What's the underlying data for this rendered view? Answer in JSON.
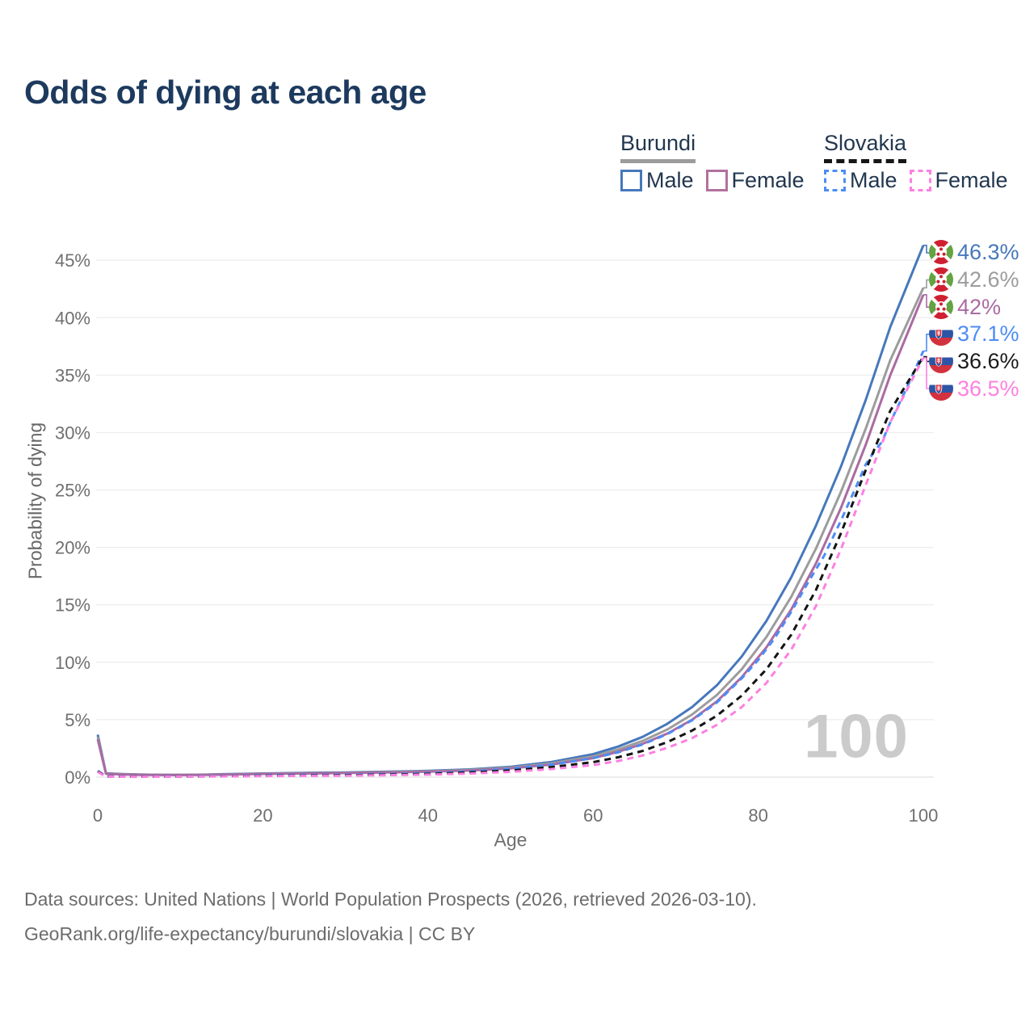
{
  "title": "Odds of dying at each age",
  "legend": {
    "groups": [
      {
        "country": "Burundi",
        "style": "solid",
        "items": [
          {
            "label": "Male",
            "color": "#4678bb"
          },
          {
            "label": "Female",
            "color": "#b0719f"
          }
        ]
      },
      {
        "country": "Slovakia",
        "style": "dashed",
        "items": [
          {
            "label": "Male",
            "color": "#4d8cf5"
          },
          {
            "label": "Female",
            "color": "#fd80e1"
          }
        ]
      }
    ]
  },
  "chart_data": {
    "type": "line",
    "title": "Odds of dying at each age",
    "xlabel": "Age",
    "ylabel": "Probability of dying",
    "xlim": [
      0,
      100
    ],
    "ylim": [
      0,
      46.5
    ],
    "grid": "horizontal",
    "watermark": "100",
    "xticks": [
      {
        "v": 0,
        "label": "0"
      },
      {
        "v": 20,
        "label": "20"
      },
      {
        "v": 40,
        "label": "40"
      },
      {
        "v": 60,
        "label": "60"
      },
      {
        "v": 80,
        "label": "80"
      },
      {
        "v": 100,
        "label": "100"
      }
    ],
    "yticks": [
      {
        "v": 0,
        "label": "0%"
      },
      {
        "v": 5,
        "label": "5%"
      },
      {
        "v": 10,
        "label": "10%"
      },
      {
        "v": 15,
        "label": "15%"
      },
      {
        "v": 20,
        "label": "20%"
      },
      {
        "v": 25,
        "label": "25%"
      },
      {
        "v": 30,
        "label": "30%"
      },
      {
        "v": 35,
        "label": "35%"
      },
      {
        "v": 40,
        "label": "40%"
      },
      {
        "v": 45,
        "label": "45%"
      }
    ],
    "series": [
      {
        "id": "burundi-male",
        "name": "Burundi Male",
        "color": "#4678bb",
        "dash": false,
        "points": [
          [
            0,
            3.7
          ],
          [
            1,
            0.33
          ],
          [
            3,
            0.27
          ],
          [
            5,
            0.23
          ],
          [
            8,
            0.2
          ],
          [
            10,
            0.2
          ],
          [
            13,
            0.22
          ],
          [
            15,
            0.25
          ],
          [
            18,
            0.29
          ],
          [
            20,
            0.32
          ],
          [
            25,
            0.37
          ],
          [
            30,
            0.41
          ],
          [
            35,
            0.47
          ],
          [
            40,
            0.54
          ],
          [
            45,
            0.67
          ],
          [
            50,
            0.9
          ],
          [
            55,
            1.32
          ],
          [
            60,
            2.0
          ],
          [
            63,
            2.65
          ],
          [
            66,
            3.5
          ],
          [
            69,
            4.65
          ],
          [
            72,
            6.1
          ],
          [
            75,
            8.0
          ],
          [
            78,
            10.5
          ],
          [
            81,
            13.6
          ],
          [
            84,
            17.4
          ],
          [
            87,
            21.9
          ],
          [
            90,
            27.0
          ],
          [
            93,
            32.8
          ],
          [
            96,
            39.2
          ],
          [
            100,
            46.3
          ]
        ]
      },
      {
        "id": "burundi-both",
        "name": "Burundi Both sexes",
        "color": "#9c9c9c",
        "dash": false,
        "points": [
          [
            0,
            3.5
          ],
          [
            1,
            0.31
          ],
          [
            3,
            0.25
          ],
          [
            5,
            0.21
          ],
          [
            8,
            0.19
          ],
          [
            10,
            0.19
          ],
          [
            13,
            0.21
          ],
          [
            15,
            0.23
          ],
          [
            18,
            0.27
          ],
          [
            20,
            0.3
          ],
          [
            25,
            0.34
          ],
          [
            30,
            0.38
          ],
          [
            35,
            0.44
          ],
          [
            40,
            0.5
          ],
          [
            45,
            0.61
          ],
          [
            50,
            0.82
          ],
          [
            55,
            1.2
          ],
          [
            60,
            1.8
          ],
          [
            63,
            2.4
          ],
          [
            66,
            3.15
          ],
          [
            69,
            4.15
          ],
          [
            72,
            5.45
          ],
          [
            75,
            7.15
          ],
          [
            78,
            9.4
          ],
          [
            81,
            12.2
          ],
          [
            84,
            15.7
          ],
          [
            87,
            19.9
          ],
          [
            90,
            24.8
          ],
          [
            93,
            30.3
          ],
          [
            96,
            36.3
          ],
          [
            100,
            42.6
          ]
        ]
      },
      {
        "id": "burundi-female",
        "name": "Burundi Female",
        "color": "#aa6ba3",
        "dash": false,
        "points": [
          [
            0,
            3.3
          ],
          [
            1,
            0.29
          ],
          [
            3,
            0.23
          ],
          [
            5,
            0.2
          ],
          [
            8,
            0.18
          ],
          [
            10,
            0.18
          ],
          [
            13,
            0.19
          ],
          [
            15,
            0.21
          ],
          [
            18,
            0.25
          ],
          [
            20,
            0.28
          ],
          [
            25,
            0.32
          ],
          [
            30,
            0.36
          ],
          [
            35,
            0.41
          ],
          [
            40,
            0.47
          ],
          [
            45,
            0.57
          ],
          [
            50,
            0.76
          ],
          [
            55,
            1.1
          ],
          [
            60,
            1.65
          ],
          [
            63,
            2.2
          ],
          [
            66,
            2.9
          ],
          [
            69,
            3.8
          ],
          [
            72,
            5.0
          ],
          [
            75,
            6.6
          ],
          [
            78,
            8.7
          ],
          [
            81,
            11.3
          ],
          [
            84,
            14.6
          ],
          [
            87,
            18.6
          ],
          [
            90,
            23.4
          ],
          [
            93,
            28.9
          ],
          [
            96,
            35.0
          ],
          [
            100,
            42.0
          ]
        ]
      },
      {
        "id": "slovakia-male",
        "name": "Slovakia Male",
        "color": "#4d8cf5",
        "dash": true,
        "points": [
          [
            0,
            0.55
          ],
          [
            1,
            0.06
          ],
          [
            5,
            0.05
          ],
          [
            10,
            0.06
          ],
          [
            15,
            0.1
          ],
          [
            18,
            0.14
          ],
          [
            20,
            0.16
          ],
          [
            25,
            0.18
          ],
          [
            30,
            0.21
          ],
          [
            35,
            0.26
          ],
          [
            40,
            0.34
          ],
          [
            45,
            0.48
          ],
          [
            50,
            0.73
          ],
          [
            55,
            1.1
          ],
          [
            60,
            1.65
          ],
          [
            63,
            2.15
          ],
          [
            66,
            2.85
          ],
          [
            69,
            3.75
          ],
          [
            72,
            4.95
          ],
          [
            75,
            6.5
          ],
          [
            78,
            8.6
          ],
          [
            80,
            10.2
          ],
          [
            82,
            12.1
          ],
          [
            84,
            14.4
          ],
          [
            86,
            16.9
          ],
          [
            88,
            19.3
          ],
          [
            90,
            22.3
          ],
          [
            92,
            25.5
          ],
          [
            93,
            27.2
          ],
          [
            94,
            28.3
          ],
          [
            95,
            29.2
          ],
          [
            96,
            30.9
          ],
          [
            98,
            33.9
          ],
          [
            100,
            37.1
          ]
        ]
      },
      {
        "id": "slovakia-both",
        "name": "Slovakia Both sexes",
        "color": "#141414",
        "dash": true,
        "points": [
          [
            0,
            0.5
          ],
          [
            1,
            0.05
          ],
          [
            5,
            0.04
          ],
          [
            10,
            0.05
          ],
          [
            15,
            0.08
          ],
          [
            20,
            0.12
          ],
          [
            25,
            0.14
          ],
          [
            30,
            0.17
          ],
          [
            35,
            0.21
          ],
          [
            40,
            0.28
          ],
          [
            45,
            0.4
          ],
          [
            50,
            0.58
          ],
          [
            55,
            0.88
          ],
          [
            60,
            1.3
          ],
          [
            63,
            1.72
          ],
          [
            66,
            2.28
          ],
          [
            69,
            3.05
          ],
          [
            72,
            4.05
          ],
          [
            75,
            5.35
          ],
          [
            78,
            7.1
          ],
          [
            81,
            9.4
          ],
          [
            84,
            12.4
          ],
          [
            87,
            16.3
          ],
          [
            90,
            21.2
          ],
          [
            93,
            26.7
          ],
          [
            96,
            31.9
          ],
          [
            100,
            36.6
          ]
        ]
      },
      {
        "id": "slovakia-female",
        "name": "Slovakia Female",
        "color": "#fd80e1",
        "dash": true,
        "points": [
          [
            0,
            0.45
          ],
          [
            1,
            0.04
          ],
          [
            5,
            0.03
          ],
          [
            10,
            0.04
          ],
          [
            15,
            0.06
          ],
          [
            20,
            0.09
          ],
          [
            25,
            0.11
          ],
          [
            30,
            0.13
          ],
          [
            35,
            0.17
          ],
          [
            40,
            0.22
          ],
          [
            45,
            0.31
          ],
          [
            50,
            0.46
          ],
          [
            55,
            0.7
          ],
          [
            60,
            1.05
          ],
          [
            63,
            1.4
          ],
          [
            66,
            1.88
          ],
          [
            69,
            2.55
          ],
          [
            72,
            3.4
          ],
          [
            75,
            4.55
          ],
          [
            78,
            6.1
          ],
          [
            81,
            8.2
          ],
          [
            84,
            11.1
          ],
          [
            87,
            14.9
          ],
          [
            90,
            19.8
          ],
          [
            93,
            25.4
          ],
          [
            96,
            30.9
          ],
          [
            100,
            36.5
          ]
        ]
      }
    ],
    "end_labels": [
      {
        "text": "46.3%",
        "value": 46.3,
        "flag": "burundi",
        "color": "#4678bb"
      },
      {
        "text": "42.6%",
        "value": 42.6,
        "flag": "burundi",
        "color": "#9c9c9c"
      },
      {
        "text": "42%",
        "value": 42.0,
        "flag": "burundi",
        "color": "#aa6ba3"
      },
      {
        "text": "37.1%",
        "value": 37.1,
        "flag": "slovakia",
        "color": "#4d8cf5"
      },
      {
        "text": "36.6%",
        "value": 36.6,
        "flag": "slovakia",
        "color": "#1a1a1a"
      },
      {
        "text": "36.5%",
        "value": 36.5,
        "flag": "slovakia",
        "color": "#fd80e1"
      }
    ]
  },
  "footer": {
    "line1": "Data sources: United Nations | World Population Prospects (2026, retrieved 2026-03-10).",
    "line2": "GeoRank.org/life-expectancy/burundi/slovakia | CC BY"
  }
}
